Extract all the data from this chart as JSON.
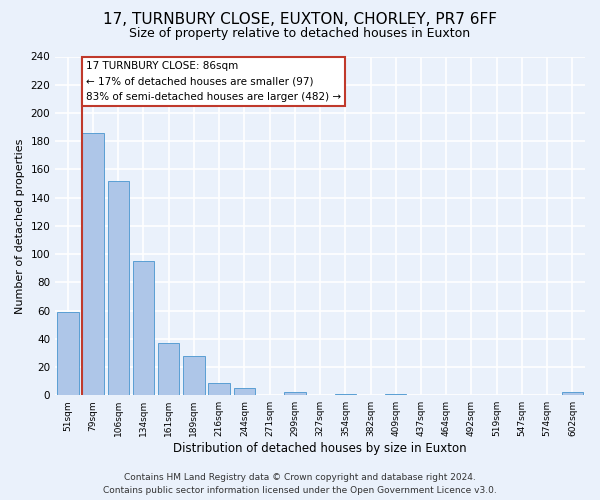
{
  "title": "17, TURNBURY CLOSE, EUXTON, CHORLEY, PR7 6FF",
  "subtitle": "Size of property relative to detached houses in Euxton",
  "xlabel": "Distribution of detached houses by size in Euxton",
  "ylabel": "Number of detached properties",
  "bin_labels": [
    "51sqm",
    "79sqm",
    "106sqm",
    "134sqm",
    "161sqm",
    "189sqm",
    "216sqm",
    "244sqm",
    "271sqm",
    "299sqm",
    "327sqm",
    "354sqm",
    "382sqm",
    "409sqm",
    "437sqm",
    "464sqm",
    "492sqm",
    "519sqm",
    "547sqm",
    "574sqm",
    "602sqm"
  ],
  "bar_values": [
    59,
    186,
    152,
    95,
    37,
    28,
    9,
    5,
    0,
    2,
    0,
    1,
    0,
    1,
    0,
    0,
    0,
    0,
    0,
    0,
    2
  ],
  "bar_color": "#aec6e8",
  "bar_edge_color": "#5a9fd4",
  "ylim": [
    0,
    240
  ],
  "yticks": [
    0,
    20,
    40,
    60,
    80,
    100,
    120,
    140,
    160,
    180,
    200,
    220,
    240
  ],
  "property_line_x": 0.575,
  "property_line_color": "#c0392b",
  "annotation_title": "17 TURNBURY CLOSE: 86sqm",
  "annotation_line1": "← 17% of detached houses are smaller (97)",
  "annotation_line2": "83% of semi-detached houses are larger (482) →",
  "annotation_box_color": "#ffffff",
  "annotation_box_edge": "#c0392b",
  "footer_line1": "Contains HM Land Registry data © Crown copyright and database right 2024.",
  "footer_line2": "Contains public sector information licensed under the Open Government Licence v3.0.",
  "background_color": "#eaf1fb",
  "plot_bg_color": "#eaf1fb",
  "grid_color": "#ffffff",
  "title_fontsize": 11,
  "subtitle_fontsize": 9,
  "xlabel_fontsize": 8.5,
  "ylabel_fontsize": 8,
  "footer_fontsize": 6.5,
  "annotation_fontsize": 7.5
}
